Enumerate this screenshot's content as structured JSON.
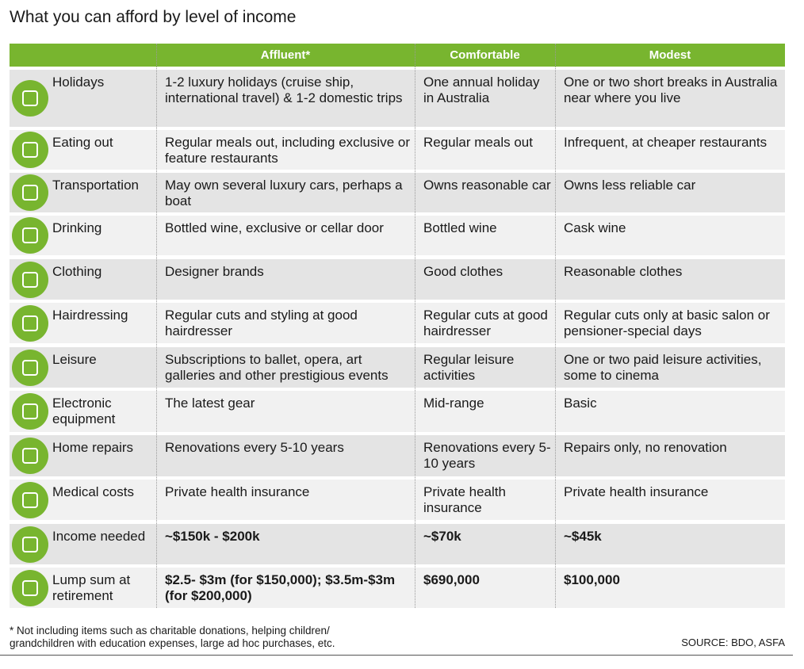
{
  "title": "What you can afford by level of income",
  "table": {
    "header": [
      "Affluent*",
      "Comfortable",
      "Modest"
    ],
    "rows": [
      [
        "Holidays",
        "1-2 luxury holidays (cruise ship, international travel) & 1-2 domestic trips",
        "One annual holiday in Australia",
        "One or two short breaks in Australia near where you live"
      ],
      [
        "Eating out",
        "Regular meals out, including exclusive or feature restaurants",
        "Regular meals out",
        "Infrequent, at cheaper restaurants"
      ],
      [
        "Transportation",
        "May own several luxury cars, perhaps a boat",
        "Owns reasonable car",
        "Owns less reliable car"
      ],
      [
        "Drinking",
        "Bottled wine, exclusive or cellar door",
        "Bottled wine",
        "Cask wine"
      ],
      [
        "Clothing",
        "Designer brands",
        "Good clothes",
        "Reasonable clothes"
      ],
      [
        "Hairdressing",
        "Regular cuts and styling at good hairdresser",
        "Regular cuts at good hairdresser",
        "Regular cuts only at basic salon or pensioner-special days"
      ],
      [
        "Leisure",
        "Subscriptions to ballet, opera, art galleries and other prestigious events",
        "Regular leisure activities",
        "One or two paid leisure activities, some to cinema"
      ],
      [
        "Electronic equipment",
        "The latest gear",
        "Mid-range",
        "Basic"
      ],
      [
        "Home repairs",
        "Renovations every 5-10 years",
        "Renovations every 5-10 years",
        "Repairs only, no renovation"
      ],
      [
        "Medical costs",
        "Private health insurance",
        "Private health insurance",
        "Private health insurance"
      ],
      [
        "Income needed",
        "~$150k - $200k",
        "~$70k",
        "~$45k"
      ],
      [
        "Lump sum at retirement",
        "$2.5- $3m (for $150,000); $3.5m-$3m (for $200,000)",
        "$690,000",
        "$100,000"
      ]
    ]
  },
  "footnote": "* Not including items such as charitable donations, helping children/ grandchildren with education expenses, large ad hoc purchases, etc.",
  "source": "SOURCE: BDO, ASFA"
}
